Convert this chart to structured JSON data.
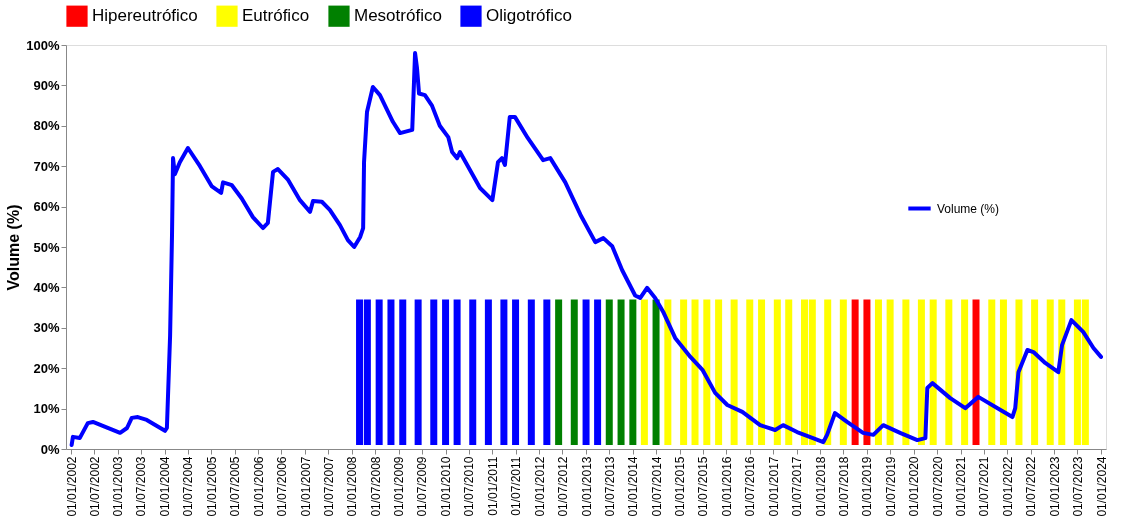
{
  "chart_data": {
    "type": "bar",
    "ylabel": "Volume (%)",
    "legend": "top",
    "grid": false,
    "xlim": [
      "2002-01-01",
      "2024-01-01"
    ],
    "xticks": [
      {
        "value": "2002-01-01",
        "label": "01/01/2002"
      },
      {
        "value": "2002-07-01",
        "label": "01/07/2002"
      },
      {
        "value": "2003-01-01",
        "label": "01/01/2003"
      },
      {
        "value": "2003-07-01",
        "label": "01/07/2003"
      },
      {
        "value": "2004-01-01",
        "label": "01/01/2004"
      },
      {
        "value": "2004-07-01",
        "label": "01/07/2004"
      },
      {
        "value": "2005-01-01",
        "label": "01/01/2005"
      },
      {
        "value": "2005-07-01",
        "label": "01/07/2005"
      },
      {
        "value": "2006-01-01",
        "label": "01/01/2006"
      },
      {
        "value": "2006-07-01",
        "label": "01/07/2006"
      },
      {
        "value": "2007-01-01",
        "label": "01/01/2007"
      },
      {
        "value": "2007-07-01",
        "label": "01/07/2007"
      },
      {
        "value": "2008-01-01",
        "label": "01/01/2008"
      },
      {
        "value": "2008-07-01",
        "label": "01/07/2008"
      },
      {
        "value": "2009-01-01",
        "label": "01/01/2009"
      },
      {
        "value": "2009-07-01",
        "label": "01/07/2009"
      },
      {
        "value": "2010-01-01",
        "label": "01/01/2010"
      },
      {
        "value": "2010-07-01",
        "label": "01/07/2010"
      },
      {
        "value": "2011-01-01",
        "label": "01/01/2011"
      },
      {
        "value": "2011-07-01",
        "label": "01/07/2011"
      },
      {
        "value": "2012-01-01",
        "label": "01/01/2012"
      },
      {
        "value": "2012-07-01",
        "label": "01/07/2012"
      },
      {
        "value": "2013-01-01",
        "label": "01/01/2013"
      },
      {
        "value": "2013-07-01",
        "label": "01/07/2013"
      },
      {
        "value": "2014-01-01",
        "label": "01/01/2014"
      },
      {
        "value": "2014-07-01",
        "label": "01/07/2014"
      },
      {
        "value": "2015-01-01",
        "label": "01/01/2015"
      },
      {
        "value": "2015-07-01",
        "label": "01/07/2015"
      },
      {
        "value": "2016-01-01",
        "label": "01/01/2016"
      },
      {
        "value": "2016-07-01",
        "label": "01/07/2016"
      },
      {
        "value": "2017-01-01",
        "label": "01/01/2017"
      },
      {
        "value": "2017-07-01",
        "label": "01/07/2017"
      },
      {
        "value": "2018-01-01",
        "label": "01/01/2018"
      },
      {
        "value": "2018-07-01",
        "label": "01/07/2018"
      },
      {
        "value": "2019-01-01",
        "label": "01/01/2019"
      },
      {
        "value": "2019-07-01",
        "label": "01/07/2019"
      },
      {
        "value": "2020-01-01",
        "label": "01/01/2020"
      },
      {
        "value": "2020-07-01",
        "label": "01/07/2020"
      },
      {
        "value": "2021-01-01",
        "label": "01/01/2021"
      },
      {
        "value": "2021-07-01",
        "label": "01/07/2021"
      },
      {
        "value": "2022-01-01",
        "label": "01/01/2022"
      },
      {
        "value": "2022-07-01",
        "label": "01/07/2022"
      },
      {
        "value": "2023-01-01",
        "label": "01/01/2023"
      },
      {
        "value": "2023-07-01",
        "label": "01/07/2023"
      },
      {
        "value": "2024-01-01",
        "label": "01/01/2024"
      }
    ],
    "ylim": [
      0,
      100
    ],
    "yticks": [
      {
        "value": 0,
        "label": "0%"
      },
      {
        "value": 10,
        "label": "10%"
      },
      {
        "value": 20,
        "label": "20%"
      },
      {
        "value": 30,
        "label": "30%"
      },
      {
        "value": 40,
        "label": "40%"
      },
      {
        "value": 50,
        "label": "50%"
      },
      {
        "value": 60,
        "label": "60%"
      },
      {
        "value": 70,
        "label": "70%"
      },
      {
        "value": 80,
        "label": "80%"
      },
      {
        "value": 90,
        "label": "90%"
      },
      {
        "value": 100,
        "label": "100%"
      }
    ],
    "series": [
      {
        "name": "Hipereutrófico",
        "color": "#ff0000",
        "x": [
          "2018-10-01",
          "2019-01-01",
          "2021-05-01"
        ],
        "base": [
          1,
          1,
          1
        ],
        "values": [
          36,
          36,
          36
        ]
      },
      {
        "name": "Eutrófico",
        "color": "#ffff00",
        "x": [
          "2014-04-01",
          "2014-10-01",
          "2015-02-01",
          "2015-05-01",
          "2015-08-01",
          "2015-11-01",
          "2016-03-01",
          "2016-07-01",
          "2016-10-01",
          "2017-02-01",
          "2017-05-01",
          "2017-09-01",
          "2017-11-01",
          "2018-03-01",
          "2018-07-01",
          "2019-04-01",
          "2019-07-01",
          "2019-11-01",
          "2020-03-01",
          "2020-06-01",
          "2020-10-01",
          "2021-02-01",
          "2021-09-01",
          "2021-12-01",
          "2022-04-01",
          "2022-08-01",
          "2022-12-01",
          "2023-03-01",
          "2023-07-01",
          "2023-09-01"
        ],
        "base": [
          1,
          1,
          1,
          1,
          1,
          1,
          1,
          1,
          1,
          1,
          1,
          1,
          1,
          1,
          1,
          1,
          1,
          1,
          1,
          1,
          1,
          1,
          1,
          1,
          1,
          1,
          1,
          1,
          1,
          1
        ],
        "values": [
          36,
          36,
          36,
          36,
          36,
          36,
          36,
          36,
          36,
          36,
          36,
          36,
          36,
          36,
          36,
          36,
          36,
          36,
          36,
          36,
          36,
          36,
          36,
          36,
          36,
          36,
          36,
          36,
          36,
          36
        ]
      },
      {
        "name": "Mesotrófico",
        "color": "#008000",
        "x": [
          "2012-06-01",
          "2012-10-01",
          "2013-07-01",
          "2013-10-01",
          "2014-01-01",
          "2014-07-01"
        ],
        "base": [
          1,
          1,
          1,
          1,
          1,
          1
        ],
        "values": [
          36,
          36,
          36,
          36,
          36,
          36
        ]
      },
      {
        "name": "Oligotrófico",
        "color": "#0000ff",
        "x": [
          "2008-03-01",
          "2008-05-01",
          "2008-08-01",
          "2008-11-01",
          "2009-02-01",
          "2009-06-01",
          "2009-10-01",
          "2010-01-01",
          "2010-04-01",
          "2010-08-01",
          "2010-12-01",
          "2011-04-01",
          "2011-07-01",
          "2011-11-01",
          "2012-03-01",
          "2013-01-01",
          "2013-04-01"
        ],
        "base": [
          1,
          1,
          1,
          1,
          1,
          1,
          1,
          1,
          1,
          1,
          1,
          1,
          1,
          1,
          1,
          1,
          1
        ],
        "values": [
          36,
          36,
          36,
          36,
          36,
          36,
          36,
          36,
          36,
          36,
          36,
          36,
          36,
          36,
          36,
          36,
          36
        ]
      },
      {
        "name": "Volume (%)",
        "type": "line",
        "color": "#0000ff",
        "line_style": "solid",
        "marker": "none",
        "x": [
          "2002-01-06",
          "2002-01-16",
          "2002-03-10",
          "2002-05-12",
          "2002-06-21",
          "2003-01-19",
          "2003-03-14",
          "2003-04-20",
          "2003-06-06",
          "2003-08-15",
          "2004-01-04",
          "2004-01-19",
          "2004-02-13",
          "2004-02-28",
          "2004-03-07",
          "2004-03-21",
          "2004-04-29",
          "2004-07-01",
          "2004-10-03",
          "2005-01-04",
          "2005-03-17",
          "2005-04-01",
          "2005-06-09",
          "2005-08-25",
          "2005-11-20",
          "2006-02-06",
          "2006-03-17",
          "2006-04-26",
          "2006-06-03",
          "2006-08-22",
          "2006-11-22",
          "2007-02-09",
          "2007-03-04",
          "2007-05-12",
          "2007-07-13",
          "2007-09-30",
          "2007-12-01",
          "2008-01-19",
          "2008-03-06",
          "2008-03-29",
          "2008-04-05",
          "2008-04-28",
          "2008-06-13",
          "2008-08-07",
          "2008-11-16",
          "2009-01-11",
          "2009-04-16",
          "2009-05-08",
          "2009-05-23",
          "2009-06-08",
          "2009-07-24",
          "2009-09-17",
          "2009-11-17",
          "2010-01-22",
          "2010-02-21",
          "2010-04-01",
          "2010-04-23",
          "2010-09-27",
          "2011-01-01",
          "2011-02-14",
          "2011-03-17",
          "2011-04-09",
          "2011-05-17",
          "2011-06-26",
          "2011-10-04",
          "2012-02-01",
          "2012-03-28",
          "2012-07-23",
          "2012-11-18",
          "2013-03-14",
          "2013-05-16",
          "2013-07-24",
          "2013-10-09",
          "2014-01-19",
          "2014-02-28",
          "2014-04-22",
          "2014-06-24",
          "2014-08-25",
          "2014-11-27",
          "2015-03-26",
          "2015-06-28",
          "2015-10-05",
          "2016-01-08",
          "2016-05-04",
          "2016-09-20",
          "2017-01-15",
          "2017-03-18",
          "2017-07-05",
          "2017-11-06",
          "2018-01-26",
          "2018-02-24",
          "2018-04-27",
          "2018-07-30",
          "2018-12-02",
          "2019-02-20",
          "2019-05-08",
          "2019-09-17",
          "2020-01-29",
          "2020-04-01",
          "2020-04-16",
          "2020-05-26",
          "2020-10-12",
          "2021-02-06",
          "2021-05-19",
          "2021-10-16",
          "2022-02-09",
          "2022-03-03",
          "2022-03-28",
          "2022-06-06",
          "2022-07-23",
          "2022-10-23",
          "2023-02-02",
          "2023-03-03",
          "2023-05-15",
          "2023-08-15",
          "2023-11-03",
          "2024-01-01"
        ],
        "values": [
          1,
          3,
          2.7,
          6.4,
          6.7,
          4,
          5.2,
          7.7,
          7.9,
          7.2,
          4.5,
          5.2,
          28,
          53,
          72,
          68,
          71,
          74.5,
          70,
          65,
          63.4,
          66,
          65.3,
          62,
          57.4,
          54.7,
          56,
          68.6,
          69.3,
          66.6,
          61.6,
          58.7,
          61.4,
          61.2,
          59.2,
          55.4,
          51.7,
          50,
          52.5,
          54.7,
          71,
          83.4,
          89.6,
          87.6,
          81,
          78.2,
          79,
          98,
          94.3,
          88,
          87.6,
          85,
          80,
          77.2,
          73.5,
          72,
          73.5,
          64.6,
          61.6,
          71,
          72,
          70.3,
          82.2,
          82.2,
          77,
          71.5,
          72,
          66,
          58,
          51.2,
          52.2,
          50.2,
          44.3,
          38,
          37.4,
          39.9,
          37.4,
          34,
          27.5,
          22.8,
          19.6,
          13.9,
          10.9,
          9.2,
          5.9,
          4.7,
          5.9,
          4.2,
          2.7,
          1.7,
          3.5,
          8.9,
          6.7,
          4,
          3.5,
          5.9,
          4,
          2.2,
          2.7,
          15.1,
          16.3,
          12.6,
          10.1,
          12.9,
          10.1,
          7.9,
          10.1,
          19,
          24.5,
          24,
          21.3,
          19,
          25.7,
          31.9,
          29,
          25,
          22.8
        ]
      }
    ]
  }
}
